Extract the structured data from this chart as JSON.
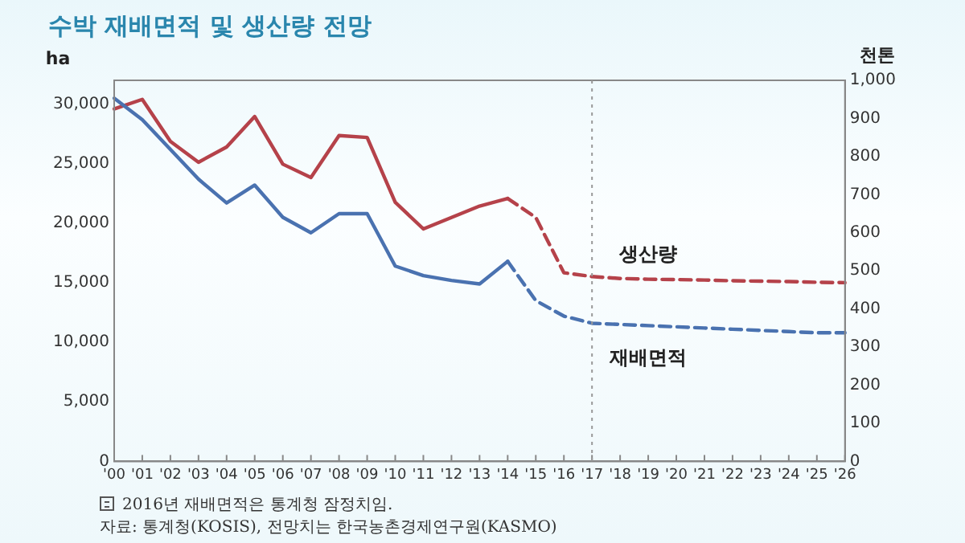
{
  "chart_data": {
    "type": "line",
    "title": "수박 재배면적 및 생산량 전망",
    "ylabel": "ha",
    "y2label": "천톤",
    "categories": [
      "'00",
      "'01",
      "'02",
      "'03",
      "'04",
      "'05",
      "'06",
      "'07",
      "'08",
      "'09",
      "'10",
      "'11",
      "'12",
      "'13",
      "'14",
      "'15",
      "'16",
      "'17",
      "'18",
      "'19",
      "'20",
      "'21",
      "'22",
      "'23",
      "'24",
      "'25",
      "'26"
    ],
    "series": [
      {
        "color": "#4a72b0",
        "line_style": "solid",
        "values": [
          30500,
          28700,
          26200,
          23700,
          21700,
          23200,
          20500,
          19200,
          20800,
          20800,
          16400,
          15600,
          15200,
          14900,
          16800,
          null,
          null,
          null,
          null,
          null,
          null,
          null,
          null,
          null,
          null,
          null,
          null
        ]
      },
      {
        "name": "재배면적",
        "color": "#4a72b0",
        "line_style": "dashed",
        "values": [
          null,
          null,
          null,
          null,
          null,
          null,
          null,
          null,
          null,
          null,
          null,
          null,
          null,
          null,
          16800,
          13500,
          12200,
          11600,
          11500,
          11400,
          11300,
          11200,
          11100,
          11000,
          10900,
          10800,
          10800
        ]
      },
      {
        "color": "#b5424a",
        "line_style": "solid",
        "axis": "y2",
        "values": [
          925,
          950,
          840,
          785,
          825,
          905,
          780,
          745,
          855,
          850,
          680,
          610,
          640,
          670,
          690,
          null,
          null,
          null,
          null,
          null,
          null,
          null,
          null,
          null,
          null,
          null,
          null
        ]
      },
      {
        "name": "생산량",
        "color": "#b5424a",
        "line_style": "dashed",
        "axis": "y2",
        "values": [
          null,
          null,
          null,
          null,
          null,
          null,
          null,
          null,
          null,
          null,
          null,
          null,
          null,
          null,
          690,
          640,
          495,
          485,
          480,
          478,
          477,
          476,
          474,
          473,
          472,
          470,
          469
        ]
      }
    ],
    "ylim": [
      0,
      32000
    ],
    "yticks": [
      {
        "value": 0,
        "label": "0"
      },
      {
        "value": 5000,
        "label": "5,000"
      },
      {
        "value": 10000,
        "label": "10,000"
      },
      {
        "value": 15000,
        "label": "15,000"
      },
      {
        "value": 20000,
        "label": "20,000"
      },
      {
        "value": 25000,
        "label": "25,000"
      },
      {
        "value": 30000,
        "label": "30,000"
      }
    ],
    "y2lim": [
      0,
      1000
    ],
    "y2ticks": [
      {
        "value": 0,
        "label": "0"
      },
      100,
      200,
      300,
      400,
      500,
      600,
      700,
      800,
      900,
      {
        "value": 1000,
        "label": "1,000"
      }
    ],
    "ref_lines": [
      {
        "axis": "x",
        "value": "'17",
        "color": "#999999",
        "line_style": "dotted"
      }
    ],
    "grid": false,
    "legend": false,
    "marker": "none",
    "annotations": [
      "2016년 재배면적은 통계청 잠정치임.",
      "자료: 통계청(KOSIS), 전망치는 한국농촌경제연구원(KASMO)"
    ]
  }
}
